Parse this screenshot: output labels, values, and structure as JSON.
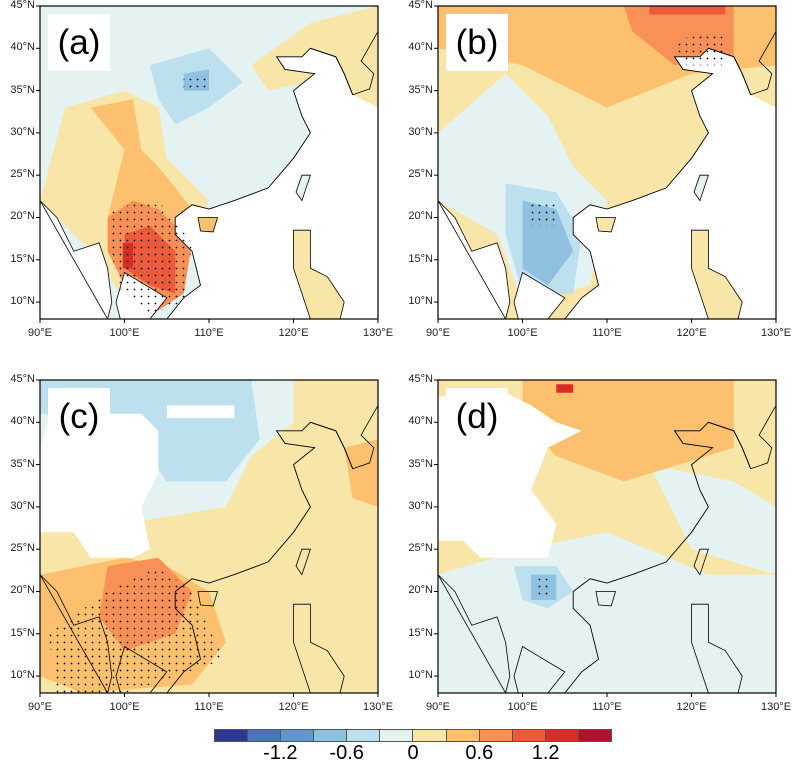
{
  "panels": [
    {
      "label": "(a)"
    },
    {
      "label": "(b)"
    },
    {
      "label": "(c)"
    },
    {
      "label": "(d)"
    }
  ],
  "axes": {
    "lat_ticks": [
      "45°N",
      "40°N",
      "35°N",
      "30°N",
      "25°N",
      "20°N",
      "15°N",
      "10°N"
    ],
    "lon_ticks": [
      "90°E",
      "100°E",
      "110°E",
      "120°E",
      "130°E"
    ],
    "lon_range": [
      90,
      130
    ],
    "lat_range": [
      8,
      45
    ]
  },
  "colorbar": {
    "levels": [
      -1.5,
      -1.2,
      -0.9,
      -0.6,
      -0.3,
      0,
      0.3,
      0.6,
      0.9,
      1.2,
      1.5
    ],
    "labels": [
      "-1.2",
      "-0.6",
      "0",
      "0.6",
      "1.2"
    ],
    "colors": [
      "#2b3990",
      "#4a74b4",
      "#6196c8",
      "#8fc0df",
      "#bde0ee",
      "#e4f2f2",
      "#f8e6a8",
      "#fcc06e",
      "#f99157",
      "#ec5a3c",
      "#d42e26",
      "#b0112b"
    ]
  },
  "stippling": "significant regions marked with dots"
}
